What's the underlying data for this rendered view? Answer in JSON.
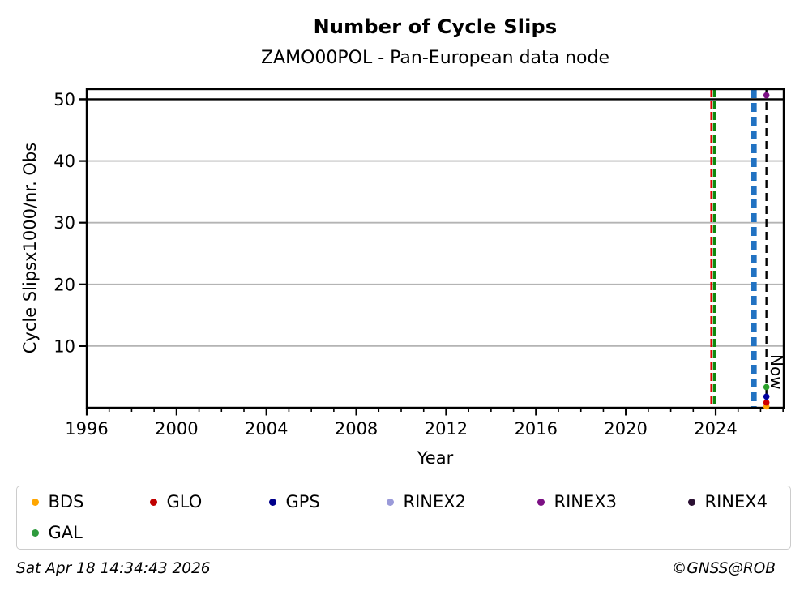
{
  "page": {
    "timestamp": "Sat Apr 18 14:34:43 2026",
    "copyright": "©GNSS@ROB"
  },
  "legend": {
    "items": [
      {
        "label": "BDS",
        "color": "#ffa600"
      },
      {
        "label": "GLO",
        "color": "#c00000"
      },
      {
        "label": "GPS",
        "color": "#00008b"
      },
      {
        "label": "RINEX2",
        "color": "#9a9ad9"
      },
      {
        "label": "RINEX3",
        "color": "#7c1084"
      },
      {
        "label": "RINEX4",
        "color": "#2b1033"
      },
      {
        "label": "GAL",
        "color": "#2e9b3d"
      }
    ]
  },
  "chart_data": {
    "type": "scatter",
    "title": "Number of Cycle Slips",
    "subtitle": "ZAMO00POL - Pan-European data node",
    "xlabel": "Year",
    "ylabel": "Cycle Slipsx1000/nr. Obs",
    "xlim": [
      1996,
      2027.03
    ],
    "ylim": [
      0,
      51.64
    ],
    "x_major_ticks": [
      1996,
      2000,
      2004,
      2008,
      2012,
      2016,
      2020,
      2024
    ],
    "x_minor_tick_step": 1,
    "y_ticks": [
      10,
      20,
      30,
      40,
      50
    ],
    "grid": true,
    "y_gridlines": {
      "values": [
        10,
        20,
        30,
        40
      ],
      "color": "#b4b4b4"
    },
    "ref_line": {
      "y": 50,
      "color": "#000000"
    },
    "event_lines": [
      {
        "name": "red-event",
        "year": 2023.81,
        "color": "#e00000",
        "width": 2.6,
        "dash": [
          10,
          4
        ]
      },
      {
        "name": "green-event",
        "year": 2023.94,
        "color": "#0f8a0f",
        "width": 3.4,
        "dash": [
          10,
          4
        ]
      },
      {
        "name": "blue-event",
        "year": 2025.7,
        "color": "#2172c2",
        "width": 7,
        "dash": [
          11,
          6
        ]
      }
    ],
    "now_line": {
      "year": 2026.26,
      "label": "Now",
      "color": "#000000",
      "width": 2.4,
      "dash": [
        10,
        6
      ]
    },
    "points": [
      {
        "series": "RINEX3",
        "x": 2026.26,
        "y": 50.65,
        "color": "#7c1084"
      },
      {
        "series": "BDS",
        "x": 2026.26,
        "y": 0.2,
        "color": "#ffa200"
      },
      {
        "series": "GLO",
        "x": 2026.26,
        "y": 0.85,
        "color": "#d00000"
      },
      {
        "series": "GPS",
        "x": 2026.26,
        "y": 1.8,
        "color": "#0000a0"
      },
      {
        "series": "GAL",
        "x": 2026.26,
        "y": 3.35,
        "color": "#2aa02a"
      }
    ],
    "legend_position": "bottom"
  }
}
